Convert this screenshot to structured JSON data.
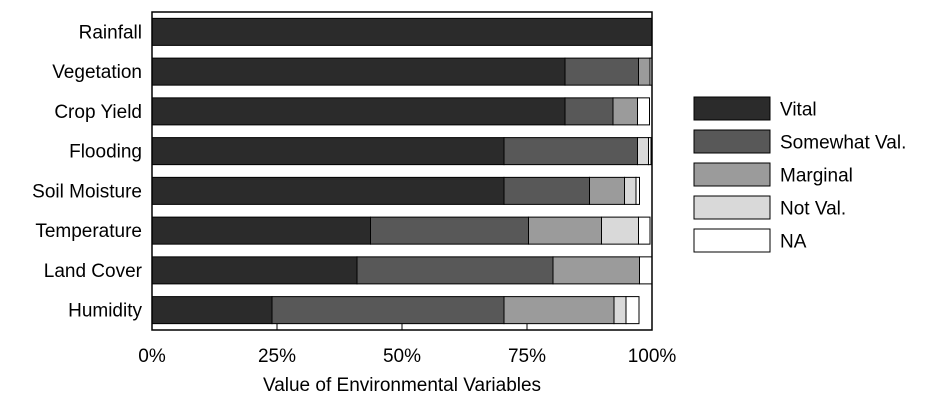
{
  "chart_data": {
    "type": "bar",
    "orientation": "horizontal",
    "stacked": true,
    "title": "",
    "xlabel": "Value of Environmental Variables",
    "ylabel": "",
    "xlim": [
      0,
      100
    ],
    "xticks": [
      "0%",
      "25%",
      "50%",
      "75%",
      "100%"
    ],
    "grid": false,
    "legend_position": "right",
    "categories": [
      "Rainfall",
      "Vegetation",
      "Crop Yield",
      "Flooding",
      "Soil Moisture",
      "Temperature",
      "Land Cover",
      "Humidity"
    ],
    "series": [
      {
        "name": "Vital",
        "color": "#2b2b2b",
        "values": [
          100,
          82.6,
          82.6,
          70.4,
          70.4,
          43.7,
          41.0,
          24.0
        ]
      },
      {
        "name": "Somewhat Val.",
        "color": "#585858",
        "values": [
          0,
          14.7,
          9.6,
          26.7,
          17.1,
          31.6,
          39.2,
          46.4
        ]
      },
      {
        "name": "Marginal",
        "color": "#9b9b9b",
        "values": [
          0,
          2.3,
          4.9,
          0,
          7.0,
          14.6,
          17.3,
          22.0
        ]
      },
      {
        "name": "Not Val.",
        "color": "#d9d9d9",
        "values": [
          0,
          0,
          0,
          2.2,
          2.3,
          7.4,
          0,
          2.4
        ]
      },
      {
        "name": "NA",
        "color": "#ffffff",
        "values": [
          0,
          0.4,
          2.4,
          0.5,
          0.7,
          2.3,
          2.5,
          2.6
        ]
      }
    ]
  }
}
